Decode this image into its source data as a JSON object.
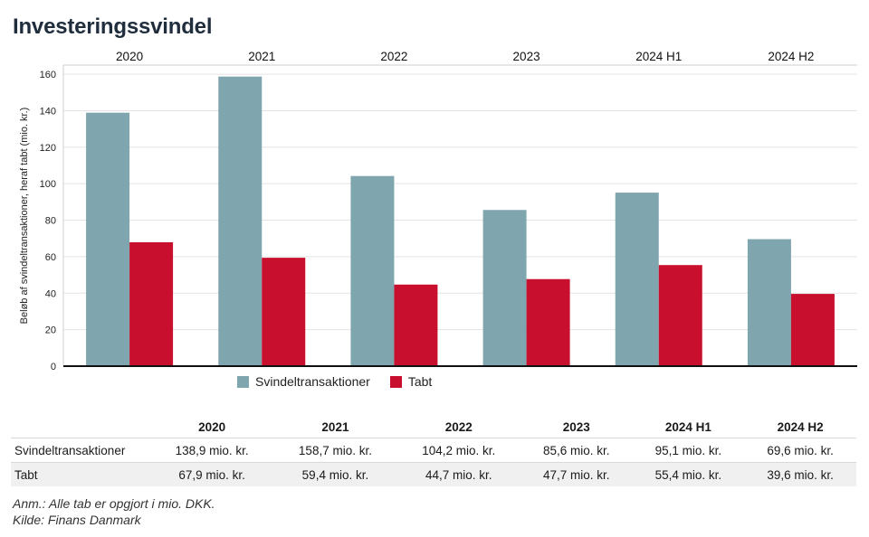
{
  "title": "Investeringssvindel",
  "chart_data": {
    "type": "bar",
    "categories": [
      "2020",
      "2021",
      "2022",
      "2023",
      "2024 H1",
      "2024 H2"
    ],
    "series": [
      {
        "name": "Svindeltransaktioner",
        "color": "#7fa6ae",
        "values": [
          138.9,
          158.7,
          104.2,
          85.6,
          95.1,
          69.6
        ]
      },
      {
        "name": "Tabt",
        "color": "#c8102e",
        "values": [
          67.9,
          59.4,
          44.7,
          47.7,
          55.4,
          39.6
        ]
      }
    ],
    "ylabel": "Beløb af svindeltransaktioner, heraf tabt (mio. kr.)",
    "ylim": [
      0,
      165
    ],
    "yticks": [
      0,
      20,
      40,
      60,
      80,
      100,
      120,
      140,
      160
    ],
    "grid": true,
    "legend": "bottom"
  },
  "table": {
    "headers": [
      "2020",
      "2021",
      "2022",
      "2023",
      "2024 H1",
      "2024 H2"
    ],
    "rows": [
      {
        "label": "Svindeltransaktioner",
        "values": [
          "138,9 mio. kr.",
          "158,7 mio. kr.",
          "104,2 mio. kr.",
          "85,6 mio. kr.",
          "95,1 mio. kr.",
          "69,6 mio. kr."
        ]
      },
      {
        "label": "Tabt",
        "values": [
          "67,9 mio. kr.",
          "59,4 mio. kr.",
          "44,7 mio. kr.",
          "47,7 mio. kr.",
          "55,4 mio. kr.",
          "39,6 mio. kr."
        ]
      }
    ]
  },
  "notes": {
    "anm": "Anm.: Alle tab er opgjort i mio. DKK.",
    "kilde": "Kilde: Finans Danmark"
  }
}
